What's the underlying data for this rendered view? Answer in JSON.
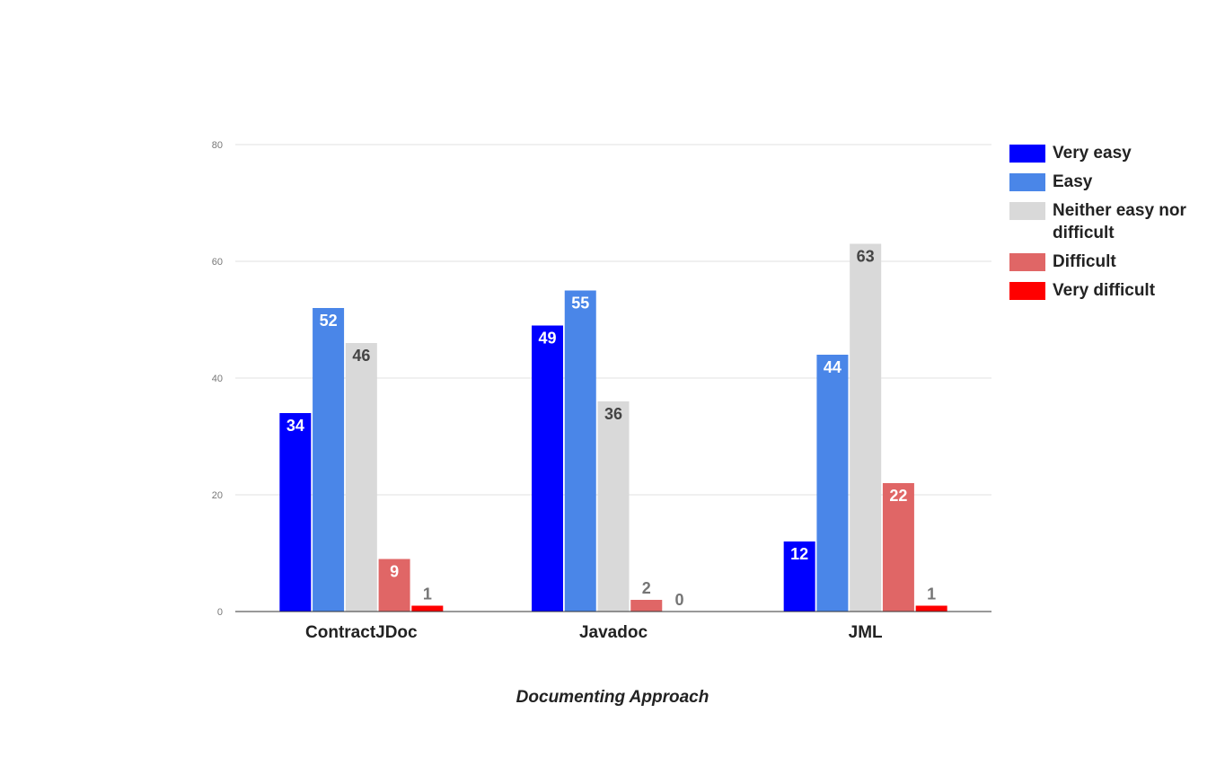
{
  "chart_data": {
    "type": "bar",
    "title": "",
    "xlabel": "Documenting Approach",
    "ylabel": "",
    "categories": [
      "ContractJDoc",
      "Javadoc",
      "JML"
    ],
    "series": [
      {
        "name": "Very easy",
        "color": "#0000ff",
        "label_color": "#ffffff",
        "values": [
          34,
          49,
          12
        ]
      },
      {
        "name": "Easy",
        "color": "#4a86e8",
        "label_color": "#ffffff",
        "values": [
          52,
          55,
          44
        ]
      },
      {
        "name": "Neither easy nor difficult",
        "color": "#d9d9d9",
        "label_color": "#444444",
        "values": [
          46,
          36,
          63
        ]
      },
      {
        "name": "Difficult",
        "color": "#e06666",
        "label_color": "#ffffff",
        "values": [
          9,
          2,
          22
        ]
      },
      {
        "name": "Very difficult",
        "color": "#ff0000",
        "label_color": "#ffffff",
        "values": [
          1,
          0,
          1
        ]
      }
    ],
    "ylim": [
      0,
      80
    ],
    "yticks": [
      "0",
      "20",
      "40",
      "60",
      "80"
    ],
    "grid": true,
    "legend_position": "right"
  }
}
